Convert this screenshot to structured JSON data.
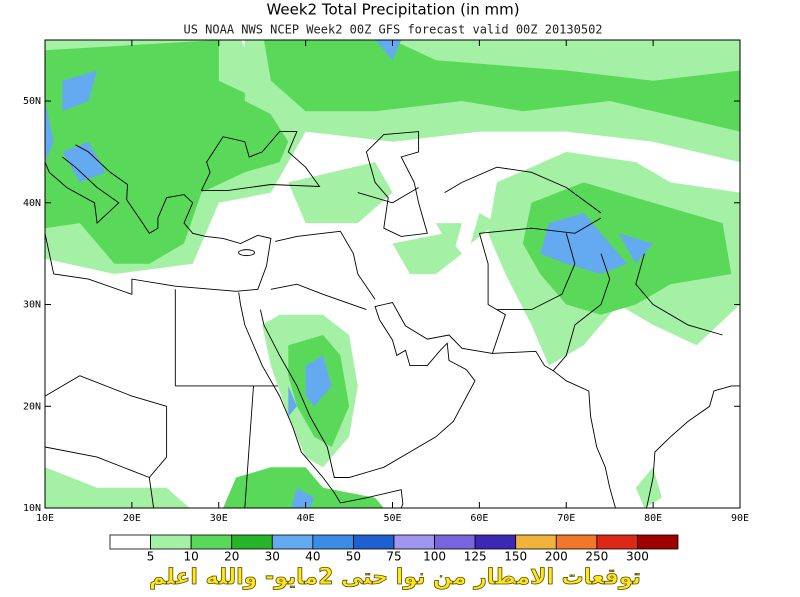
{
  "header": {
    "title": "Week2 Total Precipitation (in mm)",
    "subtitle": "US NOAA NWS NCEP Week2 00Z GFS forecast valid 00Z 20130502"
  },
  "map": {
    "xlim": [
      10,
      90
    ],
    "ylim": [
      10,
      56
    ],
    "xticks": [
      {
        "value": 10,
        "label": "10E"
      },
      {
        "value": 20,
        "label": "20E"
      },
      {
        "value": 30,
        "label": "30E"
      },
      {
        "value": 40,
        "label": "40E"
      },
      {
        "value": 50,
        "label": "50E"
      },
      {
        "value": 60,
        "label": "60E"
      },
      {
        "value": 70,
        "label": "70E"
      },
      {
        "value": 80,
        "label": "80E"
      },
      {
        "value": 90,
        "label": "90E"
      }
    ],
    "yticks": [
      {
        "value": 10,
        "label": "10N"
      },
      {
        "value": 20,
        "label": "20N"
      },
      {
        "value": 30,
        "label": "30N"
      },
      {
        "value": 40,
        "label": "40N"
      },
      {
        "value": 50,
        "label": "50N"
      }
    ]
  },
  "colorbar": {
    "boundaries": [
      5,
      10,
      20,
      30,
      40,
      50,
      75,
      100,
      125,
      150,
      200,
      250,
      300
    ],
    "colors": [
      "#ffffff",
      "#a4f0a4",
      "#5ad85a",
      "#28b428",
      "#64aaf0",
      "#3c8ce6",
      "#1e5fd2",
      "#a096f0",
      "#7864dc",
      "#3c28b4",
      "#f0b43c",
      "#f07828",
      "#dc2814",
      "#a00000"
    ]
  },
  "caption": "توقعات الامطار من نوا حتى 2مايو- والله اعلم"
}
